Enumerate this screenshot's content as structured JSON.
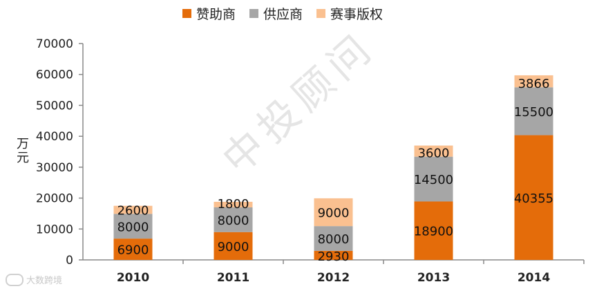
{
  "legend": [
    {
      "name": "赞助商",
      "color": "#E46C0A"
    },
    {
      "name": "供应商",
      "color": "#A6A6A6"
    },
    {
      "name": "赛事版权",
      "color": "#FAC090"
    }
  ],
  "watermark": "中投顾问",
  "brand": "大数跨境",
  "chart_data": {
    "type": "bar",
    "stacked": true,
    "categories": [
      "2010",
      "2011",
      "2012",
      "2013",
      "2014"
    ],
    "series": [
      {
        "name": "赞助商",
        "color": "#E46C0A",
        "values": [
          6900,
          9000,
          2930,
          18900,
          40355
        ]
      },
      {
        "name": "供应商",
        "color": "#A6A6A6",
        "values": [
          8000,
          8000,
          8000,
          14500,
          15500
        ]
      },
      {
        "name": "赛事版权",
        "color": "#FAC090",
        "values": [
          2600,
          1800,
          9000,
          3600,
          3866
        ]
      }
    ],
    "ylabel": "万元",
    "ylim": [
      0,
      70000
    ],
    "yticks": [
      0,
      10000,
      20000,
      30000,
      40000,
      50000,
      60000,
      70000
    ],
    "legend_position": "top",
    "grid": false
  }
}
